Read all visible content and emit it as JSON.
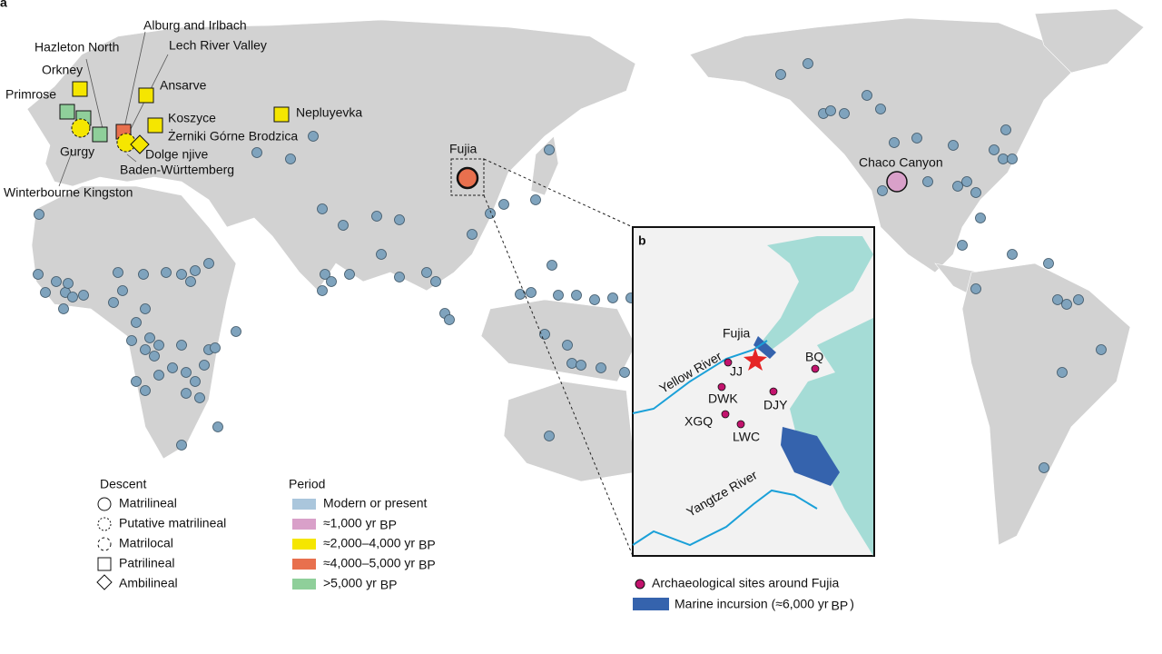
{
  "panel_labels": [
    "a",
    "b"
  ],
  "map_a": {
    "site_labels": [
      "Hazleton North",
      "Alburg and Irlbach",
      "Lech River Valley",
      "Orkney",
      "Primrose",
      "Ansarve",
      "Koszyce",
      "Żerniki Górne Brodzica",
      "Nepluyevka",
      "Gurgy",
      "Dolge njive",
      "Baden-Württemberg",
      "Winterbourne Kingston",
      "Fujia",
      "Chaco Canyon"
    ],
    "legend_descent": {
      "title": "Descent",
      "items": [
        "Matrilineal",
        "Putative matrilineal",
        "Matrilocal",
        "Patrilineal",
        "Ambilineal"
      ]
    },
    "legend_period": {
      "title": "Period",
      "items": [
        {
          "text": "Modern or present"
        },
        {
          "text": "≈1,000 yr",
          "unit": "BP"
        },
        {
          "text": "≈2,000–4,000 yr",
          "unit": "BP"
        },
        {
          "text": "≈4,000–5,000 yr",
          "unit": "BP"
        },
        {
          "text": ">5,000 yr",
          "unit": "BP"
        }
      ]
    }
  },
  "map_b": {
    "places": [
      "Fujia",
      "Yellow River",
      "Yangtze River"
    ],
    "sites": [
      "JJ",
      "DWK",
      "XGQ",
      "LWC",
      "DJY",
      "BQ"
    ],
    "legend": {
      "sites": "Archaeological sites around Fujia",
      "incursion": "Marine incursion (≈6,000 yr",
      "incursion_unit": "BP",
      "incursion_end": ")"
    }
  }
}
